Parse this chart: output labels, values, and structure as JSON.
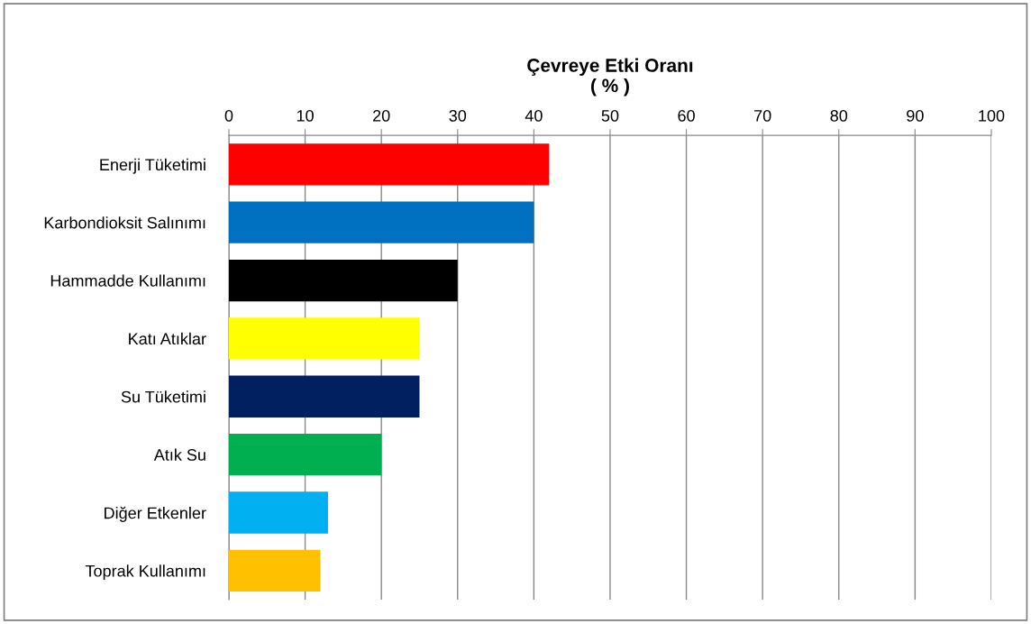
{
  "chart_data": {
    "type": "bar",
    "orientation": "horizontal",
    "xlabel": "Çevreye Etki Oranı\n( % )",
    "categories": [
      "Enerji Tüketimi",
      "Karbondioksit Salınımı",
      "Hammadde Kullanımı",
      "Katı Atıklar",
      "Su Tüketimi",
      "Atık Su",
      "Diğer Etkenler",
      "Toprak Kullanımı"
    ],
    "values": [
      42,
      40,
      30,
      25,
      25,
      20,
      13,
      12
    ],
    "colors": [
      "#ff0000",
      "#0070c0",
      "#000000",
      "#ffff00",
      "#002060",
      "#00b050",
      "#00b0f0",
      "#ffc000"
    ],
    "xlim": [
      0,
      100
    ],
    "xticks": [
      0,
      10,
      20,
      30,
      40,
      50,
      60,
      70,
      80,
      90,
      100
    ],
    "grid": "x"
  }
}
